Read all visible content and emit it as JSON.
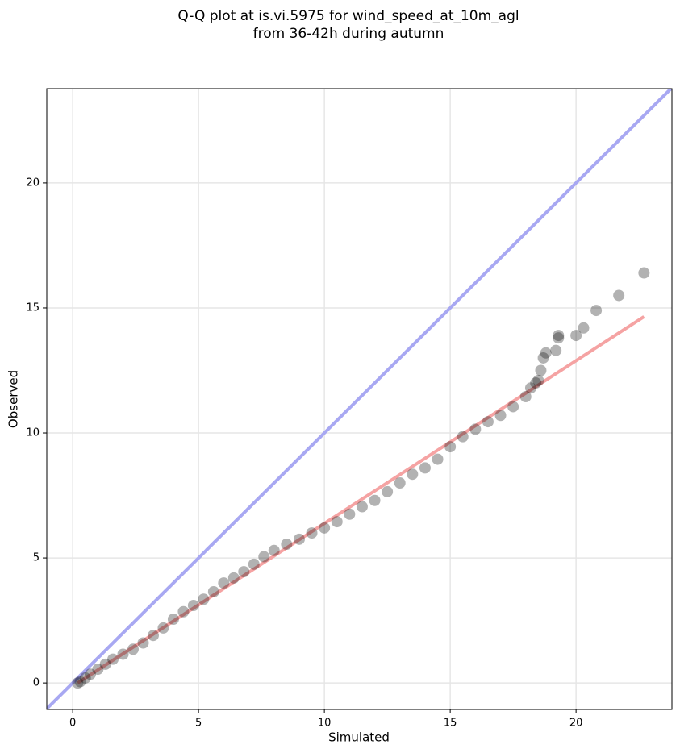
{
  "chart_data": {
    "type": "scatter",
    "title": [
      "Q-Q plot at is.vi.5975 for wind_speed_at_10m_agl",
      "from 36-42h during autumn"
    ],
    "x_label": "Simulated",
    "y_label": "Observed",
    "x": [
      0.2,
      0.3,
      0.5,
      0.7,
      1.0,
      1.3,
      1.6,
      2.0,
      2.4,
      2.8,
      3.2,
      3.6,
      4.0,
      4.4,
      4.8,
      5.2,
      5.6,
      6.0,
      6.4,
      6.8,
      7.2,
      7.6,
      8.0,
      8.5,
      9.0,
      9.5,
      10.0,
      10.5,
      11.0,
      11.5,
      12.0,
      12.5,
      13.0,
      13.5,
      14.0,
      14.5,
      15.0,
      15.5,
      16.0,
      16.5,
      17.0,
      17.5,
      18.0,
      18.2,
      18.4,
      18.5,
      18.6,
      18.7,
      18.8,
      19.2,
      19.3,
      19.3,
      20.0,
      20.3,
      20.8,
      21.7,
      22.7
    ],
    "values": [
      0.0,
      0.05,
      0.2,
      0.35,
      0.55,
      0.75,
      0.95,
      1.15,
      1.35,
      1.6,
      1.9,
      2.2,
      2.55,
      2.85,
      3.1,
      3.35,
      3.65,
      4.0,
      4.2,
      4.45,
      4.75,
      5.05,
      5.3,
      5.55,
      5.75,
      6.0,
      6.2,
      6.45,
      6.75,
      7.05,
      7.3,
      7.65,
      8.0,
      8.35,
      8.6,
      8.95,
      9.45,
      9.85,
      10.15,
      10.45,
      10.7,
      11.05,
      11.45,
      11.8,
      12.0,
      12.1,
      12.5,
      13.0,
      13.2,
      13.3,
      13.8,
      13.9,
      13.9,
      14.2,
      14.9,
      15.5,
      16.4
    ],
    "color": "#000000",
    "alpha": 0.3,
    "fit_line": {
      "color": "#f5a3a3",
      "x": [
        0.2,
        22.7
      ],
      "y": [
        0.0,
        14.65
      ]
    },
    "identity_line": {
      "color": "#a8a8f2"
    },
    "xlim": [
      -1.03,
      23.81
    ],
    "ylim": [
      -1.06,
      23.77
    ],
    "xticks": [
      0,
      5,
      10,
      15,
      20
    ],
    "yticks": [
      0,
      5,
      10,
      15,
      20
    ],
    "grid": true
  }
}
